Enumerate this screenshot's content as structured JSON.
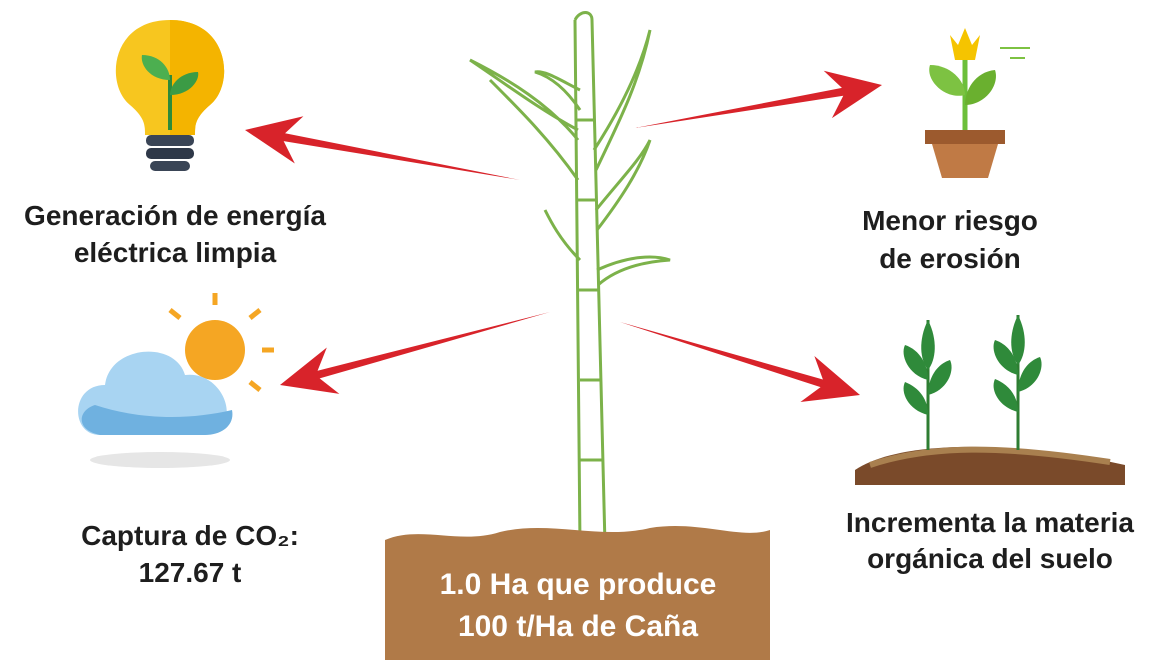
{
  "nodes": [
    {
      "lines": [
        "Generación de energía",
        "eléctrica limpia"
      ]
    },
    {
      "lines": [
        "Menor riesgo",
        "de erosión"
      ]
    },
    {
      "lines": [
        "Captura de CO₂:",
        "127.67 t"
      ]
    },
    {
      "lines": [
        "Incrementa la materia",
        "orgánica del suelo"
      ]
    }
  ],
  "center": {
    "lines": [
      "1.0 Ha que produce",
      "100 t/Ha de Caña"
    ]
  }
}
